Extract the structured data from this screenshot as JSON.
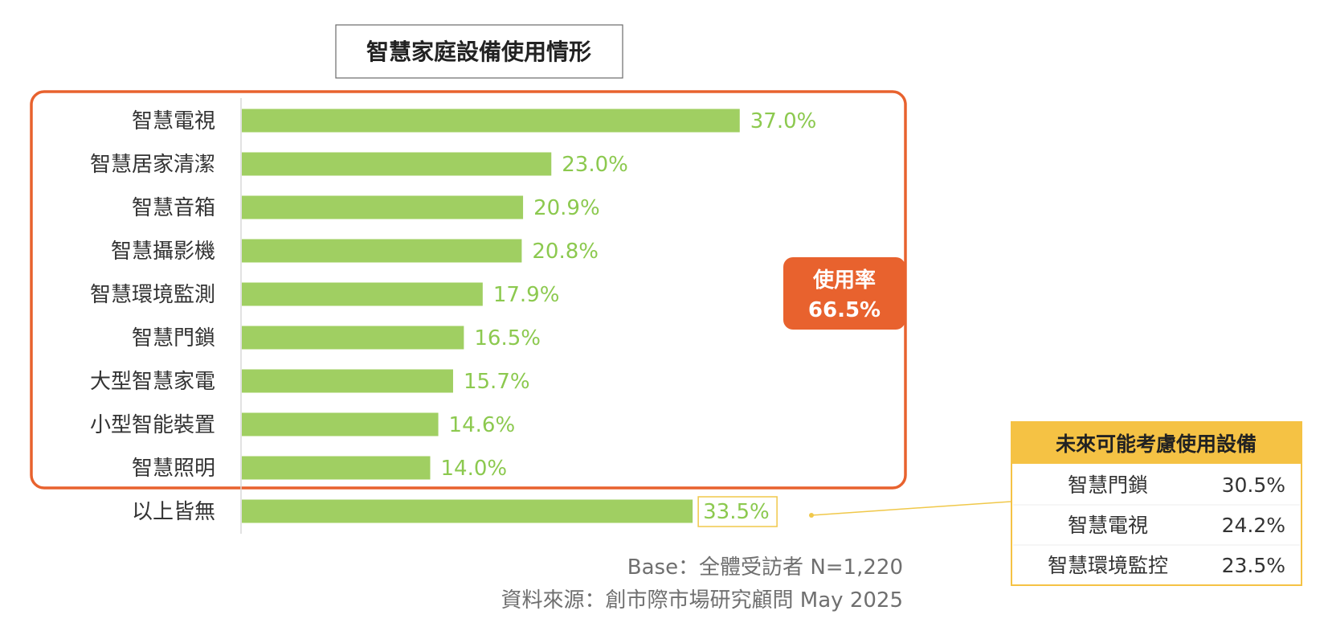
{
  "chart_data": {
    "type": "bar",
    "orientation": "horizontal",
    "title": "智慧家庭設備使用情形",
    "categories": [
      "智慧電視",
      "智慧居家清潔",
      "智慧音箱",
      "智慧攝影機",
      "智慧環境監測",
      "智慧門鎖",
      "大型智慧家電",
      "小型智能裝置",
      "智慧照明",
      "以上皆無"
    ],
    "values": [
      37.0,
      23.0,
      20.9,
      20.8,
      17.9,
      16.5,
      15.7,
      14.6,
      14.0,
      33.5
    ],
    "value_labels": [
      "37.0%",
      "23.0%",
      "20.9%",
      "20.8%",
      "17.9%",
      "16.5%",
      "15.7%",
      "14.6%",
      "14.0%",
      "33.5%"
    ],
    "xlim": [
      0,
      40
    ],
    "grid": false,
    "bar_color": "#a0cf62",
    "label_color": "#8cc94f"
  },
  "callout": {
    "line1": "使用率",
    "line2": "66.5%",
    "color": "#e8622e"
  },
  "future_panel": {
    "title": "未來可能考慮使用設備",
    "header_color": "#f5c244",
    "items": [
      {
        "name": "智慧門鎖",
        "value": "30.5%"
      },
      {
        "name": "智慧電視",
        "value": "24.2%"
      },
      {
        "name": "智慧環境監控",
        "value": "23.5%"
      }
    ]
  },
  "footer": {
    "base": "Base：全體受訪者 N=1,220",
    "source": "資料來源：創市際市場研究顧問 May 2025"
  }
}
